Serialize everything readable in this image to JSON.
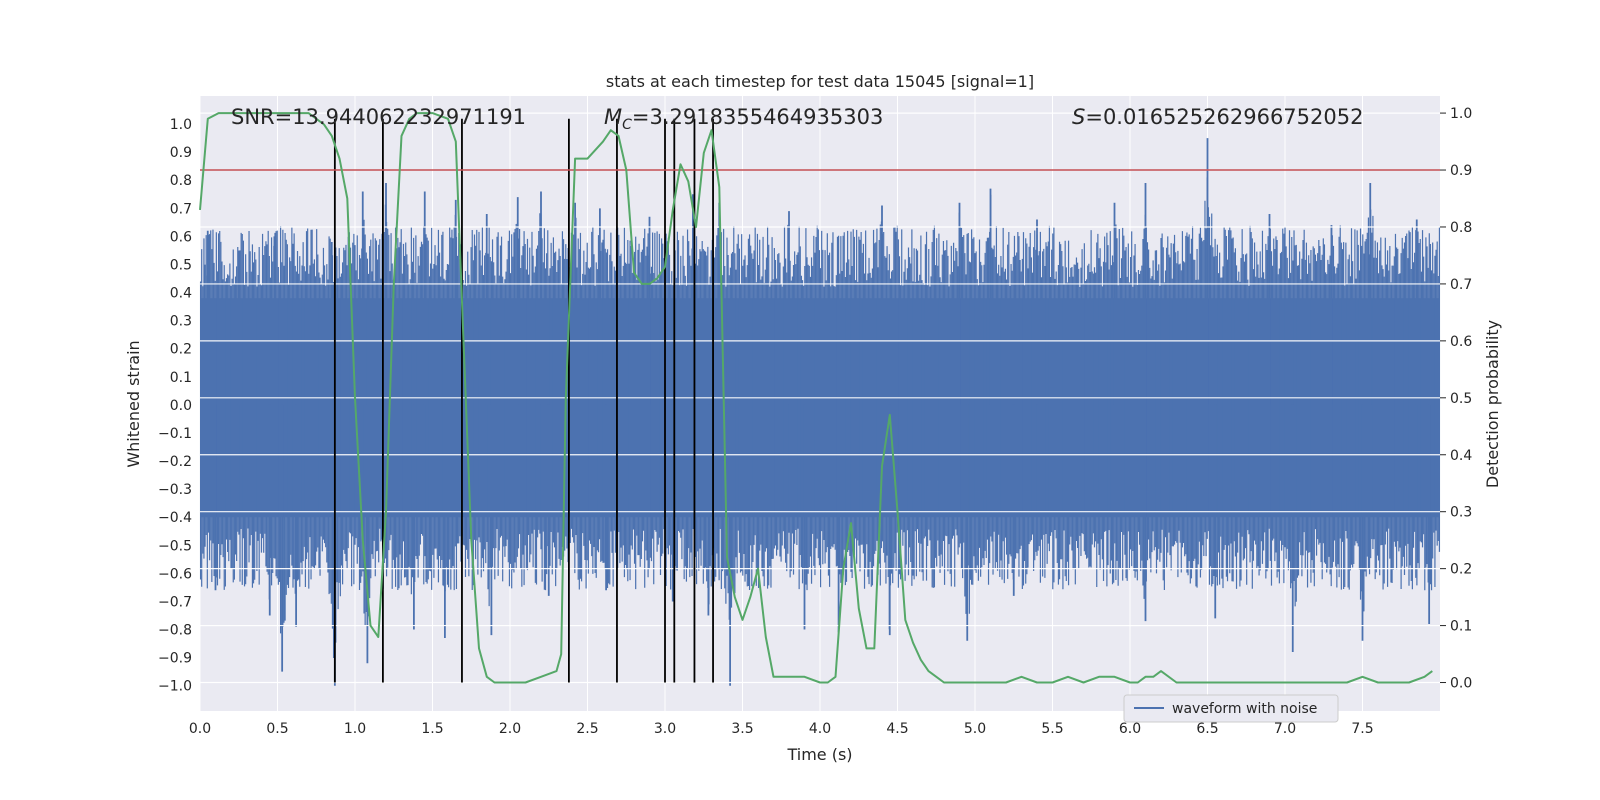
{
  "chart_data": {
    "type": "line",
    "title": "stats at each timestep for test data 15045 [signal=1]",
    "xlabel": "Time (s)",
    "ylabel_left": "Whitened strain",
    "ylabel_right": "Detection probability",
    "xlim": [
      0.0,
      8.0
    ],
    "ylim_left": [
      -1.09,
      1.1
    ],
    "ylim_right": [
      -0.05,
      1.03
    ],
    "x_ticks": [
      "0.0",
      "0.5",
      "1.0",
      "1.5",
      "2.0",
      "2.5",
      "3.0",
      "3.5",
      "4.0",
      "4.5",
      "5.0",
      "5.5",
      "6.0",
      "6.5",
      "7.0",
      "7.5"
    ],
    "y_ticks_left": [
      "1.0",
      "0.9",
      "0.8",
      "0.7",
      "0.6",
      "0.5",
      "0.4",
      "0.3",
      "0.2",
      "0.1",
      "0.0",
      "-0.1",
      "-0.2",
      "-0.3",
      "-0.4",
      "-0.5",
      "-0.6",
      "-0.7",
      "-0.8",
      "-0.9",
      "-1.0"
    ],
    "y_ticks_right": [
      "1.0",
      "0.9",
      "0.8",
      "0.7",
      "0.6",
      "0.5",
      "0.4",
      "0.3",
      "0.2",
      "0.1",
      "0.0"
    ],
    "annotations": {
      "snr": "SNR=13.944062232971191",
      "mc_symbol": "M",
      "mc_sub": "C",
      "mc_value": "=3.2918355464935303",
      "s_symbol": "S",
      "s_value": "=0.016525262966752052"
    },
    "threshold": {
      "value": 0.9,
      "axis": "right",
      "color": "#c44e52"
    },
    "vertical_lines": [
      0.87,
      1.18,
      1.69,
      2.38,
      2.69,
      3.0,
      3.06,
      3.19,
      3.31
    ],
    "legend": {
      "label": "waveform with noise",
      "location": "lower center-right"
    },
    "series": [
      {
        "name": "waveform with noise",
        "axis": "left",
        "color": "#4c72b0",
        "style": "dense-noise",
        "core_band": [
          -0.4,
          0.38
        ],
        "peaks_high": [
          [
            0.05,
            0.62
          ],
          [
            0.25,
            0.55
          ],
          [
            0.48,
            0.6
          ],
          [
            0.85,
            0.58
          ],
          [
            1.05,
            0.76
          ],
          [
            1.2,
            0.79
          ],
          [
            1.45,
            0.76
          ],
          [
            1.65,
            0.73
          ],
          [
            1.85,
            0.68
          ],
          [
            2.05,
            0.74
          ],
          [
            2.2,
            0.76
          ],
          [
            2.42,
            0.72
          ],
          [
            2.58,
            0.7
          ],
          [
            2.9,
            0.67
          ],
          [
            3.18,
            0.75
          ],
          [
            3.35,
            0.72
          ],
          [
            3.8,
            0.69
          ],
          [
            4.4,
            0.71
          ],
          [
            4.9,
            0.72
          ],
          [
            5.1,
            0.77
          ],
          [
            5.4,
            0.66
          ],
          [
            5.9,
            0.72
          ],
          [
            6.1,
            0.79
          ],
          [
            6.5,
            0.95
          ],
          [
            6.9,
            0.68
          ],
          [
            7.3,
            0.64
          ],
          [
            7.55,
            0.79
          ],
          [
            7.85,
            0.66
          ]
        ],
        "peaks_low": [
          [
            0.1,
            -0.66
          ],
          [
            0.45,
            -0.75
          ],
          [
            0.53,
            -0.95
          ],
          [
            0.62,
            -0.79
          ],
          [
            0.87,
            -1.0
          ],
          [
            1.08,
            -0.92
          ],
          [
            1.38,
            -0.8
          ],
          [
            1.58,
            -0.83
          ],
          [
            1.88,
            -0.82
          ],
          [
            2.25,
            -0.68
          ],
          [
            2.62,
            -0.66
          ],
          [
            3.05,
            -0.7
          ],
          [
            3.28,
            -0.75
          ],
          [
            3.42,
            -1.0
          ],
          [
            3.9,
            -0.8
          ],
          [
            4.12,
            -0.81
          ],
          [
            4.45,
            -0.82
          ],
          [
            4.95,
            -0.84
          ],
          [
            5.25,
            -0.68
          ],
          [
            6.1,
            -0.77
          ],
          [
            6.55,
            -0.76
          ],
          [
            7.05,
            -0.88
          ],
          [
            7.5,
            -0.84
          ],
          [
            7.93,
            -0.78
          ]
        ]
      },
      {
        "name": "detection probability",
        "axis": "right",
        "color": "#55a868",
        "x": [
          0.0,
          0.05,
          0.12,
          0.2,
          0.3,
          0.4,
          0.5,
          0.6,
          0.7,
          0.75,
          0.8,
          0.85,
          0.9,
          0.95,
          1.0,
          1.05,
          1.1,
          1.15,
          1.2,
          1.25,
          1.3,
          1.35,
          1.4,
          1.5,
          1.6,
          1.65,
          1.7,
          1.75,
          1.8,
          1.85,
          1.9,
          2.0,
          2.1,
          2.2,
          2.3,
          2.33,
          2.36,
          2.42,
          2.47,
          2.5,
          2.6,
          2.65,
          2.7,
          2.75,
          2.8,
          2.85,
          2.9,
          2.95,
          3.0,
          3.05,
          3.1,
          3.15,
          3.2,
          3.25,
          3.3,
          3.35,
          3.4,
          3.45,
          3.5,
          3.55,
          3.6,
          3.65,
          3.7,
          3.8,
          3.9,
          4.0,
          4.05,
          4.1,
          4.15,
          4.2,
          4.25,
          4.3,
          4.35,
          4.4,
          4.45,
          4.5,
          4.55,
          4.6,
          4.65,
          4.7,
          4.75,
          4.8,
          4.9,
          5.0,
          5.1,
          5.2,
          5.3,
          5.4,
          5.5,
          5.6,
          5.7,
          5.8,
          5.9,
          6.0,
          6.05,
          6.1,
          6.15,
          6.2,
          6.3,
          6.4,
          6.5,
          6.6,
          6.7,
          6.8,
          6.9,
          7.0,
          7.1,
          7.2,
          7.3,
          7.4,
          7.5,
          7.6,
          7.7,
          7.8,
          7.9,
          7.95
        ],
        "values": [
          0.83,
          0.99,
          1.0,
          1.0,
          1.0,
          1.0,
          1.0,
          1.0,
          1.0,
          0.99,
          0.98,
          0.96,
          0.92,
          0.85,
          0.5,
          0.25,
          0.1,
          0.08,
          0.3,
          0.7,
          0.96,
          0.99,
          1.0,
          1.0,
          0.99,
          0.95,
          0.6,
          0.25,
          0.06,
          0.01,
          0.0,
          0.0,
          0.0,
          0.01,
          0.02,
          0.05,
          0.5,
          0.92,
          0.92,
          0.92,
          0.95,
          0.97,
          0.96,
          0.9,
          0.72,
          0.7,
          0.7,
          0.71,
          0.73,
          0.83,
          0.91,
          0.88,
          0.8,
          0.93,
          0.97,
          0.87,
          0.22,
          0.15,
          0.11,
          0.15,
          0.2,
          0.08,
          0.01,
          0.01,
          0.01,
          0.0,
          0.0,
          0.01,
          0.2,
          0.28,
          0.13,
          0.06,
          0.06,
          0.38,
          0.47,
          0.3,
          0.11,
          0.07,
          0.04,
          0.02,
          0.01,
          0.0,
          0.0,
          0.0,
          0.0,
          0.0,
          0.01,
          0.0,
          0.0,
          0.01,
          0.0,
          0.01,
          0.01,
          0.0,
          0.0,
          0.01,
          0.01,
          0.02,
          0.0,
          0.0,
          0.0,
          0.0,
          0.0,
          0.0,
          0.0,
          0.0,
          0.0,
          0.0,
          0.0,
          0.0,
          0.01,
          0.0,
          0.0,
          0.0,
          0.01,
          0.02
        ]
      }
    ]
  }
}
